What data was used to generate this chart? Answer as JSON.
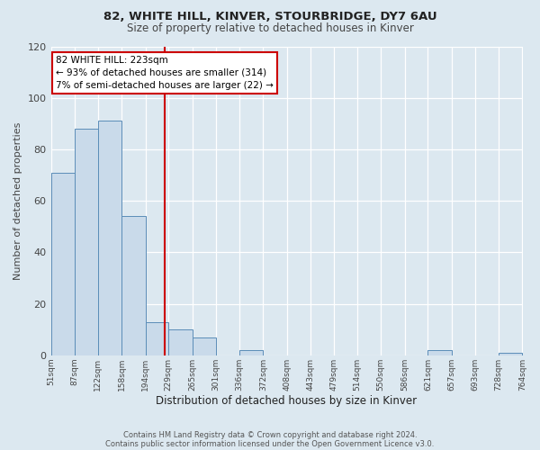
{
  "title1": "82, WHITE HILL, KINVER, STOURBRIDGE, DY7 6AU",
  "title2": "Size of property relative to detached houses in Kinver",
  "xlabel": "Distribution of detached houses by size in Kinver",
  "ylabel": "Number of detached properties",
  "bin_edges": [
    51,
    87,
    122,
    158,
    194,
    229,
    265,
    301,
    336,
    372,
    408,
    443,
    479,
    514,
    550,
    586,
    621,
    657,
    693,
    728,
    764
  ],
  "bar_heights": [
    71,
    88,
    91,
    54,
    13,
    10,
    7,
    0,
    2,
    0,
    0,
    0,
    0,
    0,
    0,
    0,
    2,
    0,
    0,
    1,
    0
  ],
  "bar_color": "#c9daea",
  "bar_edge_color": "#5b8db8",
  "vline_x": 223,
  "vline_color": "#cc0000",
  "annotation_title": "82 WHITE HILL: 223sqm",
  "annotation_line1": "← 93% of detached houses are smaller (314)",
  "annotation_line2": "7% of semi-detached houses are larger (22) →",
  "annotation_box_edge": "#cc0000",
  "ylim": [
    0,
    120
  ],
  "yticks": [
    0,
    20,
    40,
    60,
    80,
    100,
    120
  ],
  "footer1": "Contains HM Land Registry data © Crown copyright and database right 2024.",
  "footer2": "Contains public sector information licensed under the Open Government Licence v3.0.",
  "bg_color": "#dce8f0",
  "plot_bg_color": "#dce8f0"
}
